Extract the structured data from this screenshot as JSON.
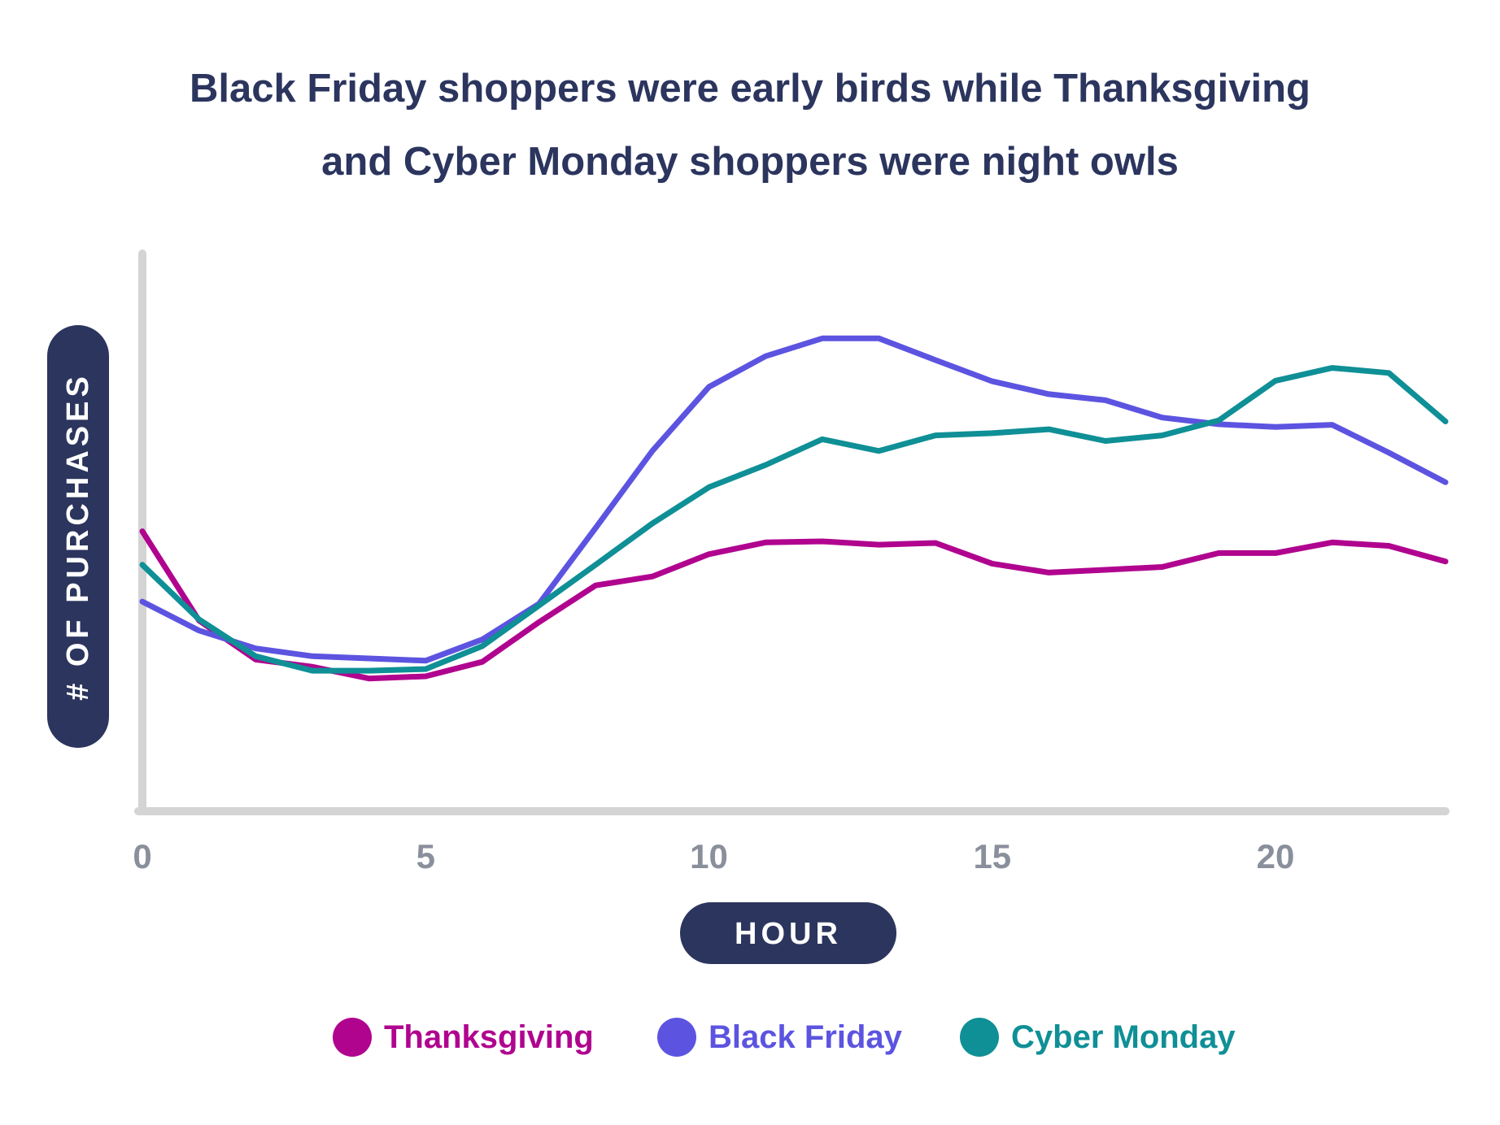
{
  "chart_data": {
    "type": "line",
    "title": "Black Friday shoppers were early birds while Thanksgiving and Cyber Monday shoppers were night owls",
    "title_lines": [
      "Black Friday shoppers were early birds while Thanksgiving",
      "and Cyber Monday shoppers were night owls"
    ],
    "xlabel": "HOUR",
    "ylabel": "# OF PURCHASES",
    "x": [
      0,
      1,
      2,
      3,
      4,
      5,
      6,
      7,
      8,
      9,
      10,
      11,
      12,
      13,
      14,
      15,
      16,
      17,
      18,
      19,
      20,
      21,
      22,
      23
    ],
    "x_ticks": [
      0,
      5,
      10,
      15,
      20
    ],
    "x_tick_labels": [
      "0",
      "5",
      "10",
      "15",
      "20"
    ],
    "xlim": [
      0,
      23
    ],
    "ylim": [
      0,
      100
    ],
    "grid": false,
    "legend_position": "bottom",
    "series": [
      {
        "name": "Thanksgiving",
        "color": "#b0048f",
        "values": [
          50.2,
          34.2,
          27.2,
          25.9,
          23.8,
          24.2,
          26.8,
          33.9,
          40.5,
          42.1,
          46.1,
          48.2,
          48.4,
          47.8,
          48.1,
          44.4,
          42.8,
          43.3,
          43.8,
          46.3,
          46.3,
          48.2,
          47.6,
          44.8
        ]
      },
      {
        "name": "Black Friday",
        "color": "#5c54e0",
        "values": [
          37.6,
          32.4,
          29.2,
          27.8,
          27.4,
          27.0,
          30.8,
          37.2,
          50.8,
          64.6,
          76.1,
          81.6,
          84.8,
          84.8,
          80.9,
          77.1,
          74.8,
          73.7,
          70.6,
          69.4,
          68.9,
          69.3,
          64.3,
          59.0
        ]
      },
      {
        "name": "Cyber Monday",
        "color": "#0f8f96",
        "values": [
          44.2,
          34.4,
          27.8,
          25.2,
          25.2,
          25.5,
          29.6,
          36.9,
          44.2,
          51.6,
          58.1,
          62.1,
          66.7,
          64.6,
          67.4,
          67.8,
          68.5,
          66.4,
          67.4,
          70.1,
          77.2,
          79.5,
          78.6,
          69.9
        ]
      }
    ]
  }
}
